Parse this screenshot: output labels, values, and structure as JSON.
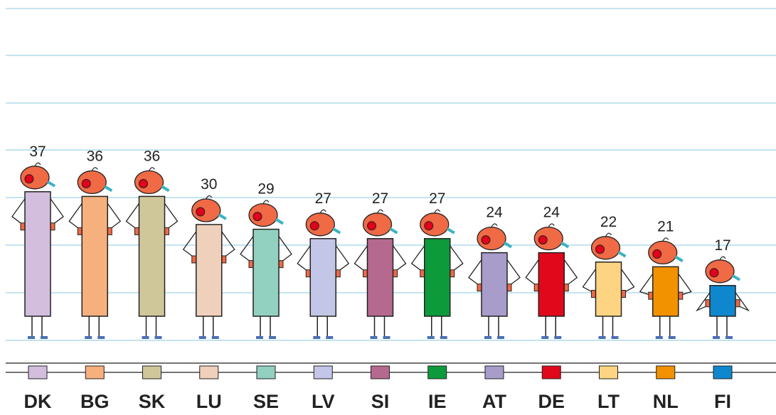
{
  "chart_data": {
    "type": "bar",
    "categories": [
      "DK",
      "BG",
      "SK",
      "LU",
      "SE",
      "LV",
      "SI",
      "IE",
      "AT",
      "DE",
      "LT",
      "NL",
      "FI"
    ],
    "values": [
      37,
      36,
      36,
      30,
      29,
      27,
      27,
      27,
      24,
      24,
      22,
      21,
      17
    ],
    "colors": [
      "#d3bedd",
      "#f5b07e",
      "#cfc79a",
      "#efd0bb",
      "#92d0c0",
      "#c3c6e6",
      "#b5698f",
      "#0d9a3b",
      "#a89ccb",
      "#e1081c",
      "#fdd582",
      "#f39200",
      "#0e87cf"
    ]
  }
}
